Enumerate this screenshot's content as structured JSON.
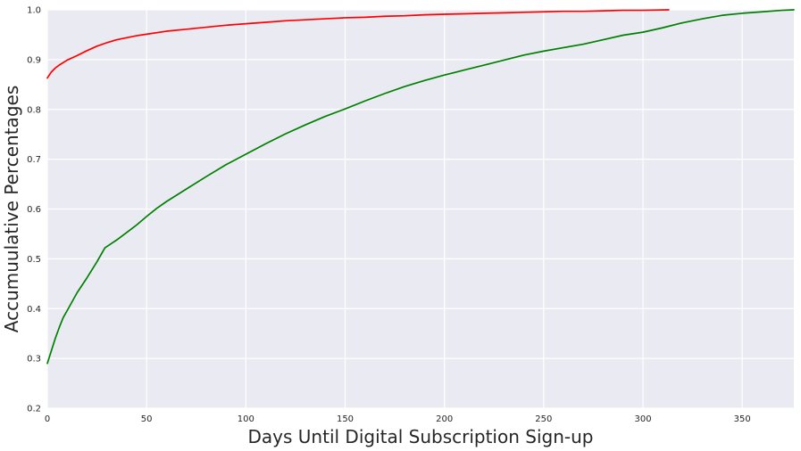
{
  "chart_data": {
    "type": "line",
    "title": "",
    "xlabel": "Days Until Digital Subscription Sign-up",
    "ylabel": "Accumuulative Percentages",
    "xlim": [
      0,
      376
    ],
    "ylim": [
      0.2,
      1.0
    ],
    "x_ticks": [
      0,
      50,
      100,
      150,
      200,
      250,
      300,
      350
    ],
    "y_ticks": [
      0.2,
      0.3,
      0.4,
      0.5,
      0.6,
      0.7,
      0.8,
      0.9,
      1.0
    ],
    "y_tick_labels": [
      "0.2",
      "0.3",
      "0.4",
      "0.5",
      "0.6",
      "0.7",
      "0.8",
      "0.9",
      "1.0"
    ],
    "grid": true,
    "background_color": "#eaeaf2",
    "series": [
      {
        "color": "#ff0000",
        "x": [
          0,
          2,
          4,
          6,
          8,
          10,
          15,
          20,
          25,
          30,
          35,
          40,
          45,
          50,
          60,
          70,
          80,
          90,
          100,
          110,
          120,
          130,
          140,
          150,
          160,
          170,
          180,
          190,
          200,
          210,
          220,
          230,
          240,
          250,
          260,
          270,
          280,
          290,
          300,
          313
        ],
        "y": [
          0.863,
          0.875,
          0.883,
          0.889,
          0.894,
          0.899,
          0.908,
          0.918,
          0.927,
          0.934,
          0.94,
          0.944,
          0.948,
          0.951,
          0.957,
          0.961,
          0.965,
          0.969,
          0.972,
          0.975,
          0.978,
          0.98,
          0.982,
          0.984,
          0.985,
          0.987,
          0.988,
          0.99,
          0.991,
          0.992,
          0.993,
          0.994,
          0.995,
          0.996,
          0.997,
          0.997,
          0.998,
          0.999,
          0.999,
          1.0
        ]
      },
      {
        "color": "#008000",
        "x": [
          0,
          2,
          4,
          6,
          8,
          10,
          15,
          20,
          25,
          29,
          35,
          40,
          45,
          50,
          55,
          60,
          70,
          80,
          90,
          100,
          110,
          120,
          130,
          140,
          150,
          160,
          170,
          180,
          190,
          200,
          210,
          220,
          230,
          240,
          250,
          260,
          270,
          280,
          290,
          300,
          310,
          320,
          330,
          340,
          350,
          360,
          370,
          376
        ],
        "y": [
          0.29,
          0.315,
          0.34,
          0.362,
          0.382,
          0.396,
          0.432,
          0.462,
          0.494,
          0.522,
          0.538,
          0.553,
          0.568,
          0.585,
          0.601,
          0.615,
          0.64,
          0.665,
          0.689,
          0.71,
          0.731,
          0.751,
          0.769,
          0.786,
          0.801,
          0.817,
          0.832,
          0.846,
          0.858,
          0.869,
          0.879,
          0.889,
          0.899,
          0.909,
          0.917,
          0.924,
          0.931,
          0.94,
          0.949,
          0.955,
          0.964,
          0.974,
          0.982,
          0.989,
          0.993,
          0.996,
          0.999,
          1.0
        ]
      }
    ]
  }
}
